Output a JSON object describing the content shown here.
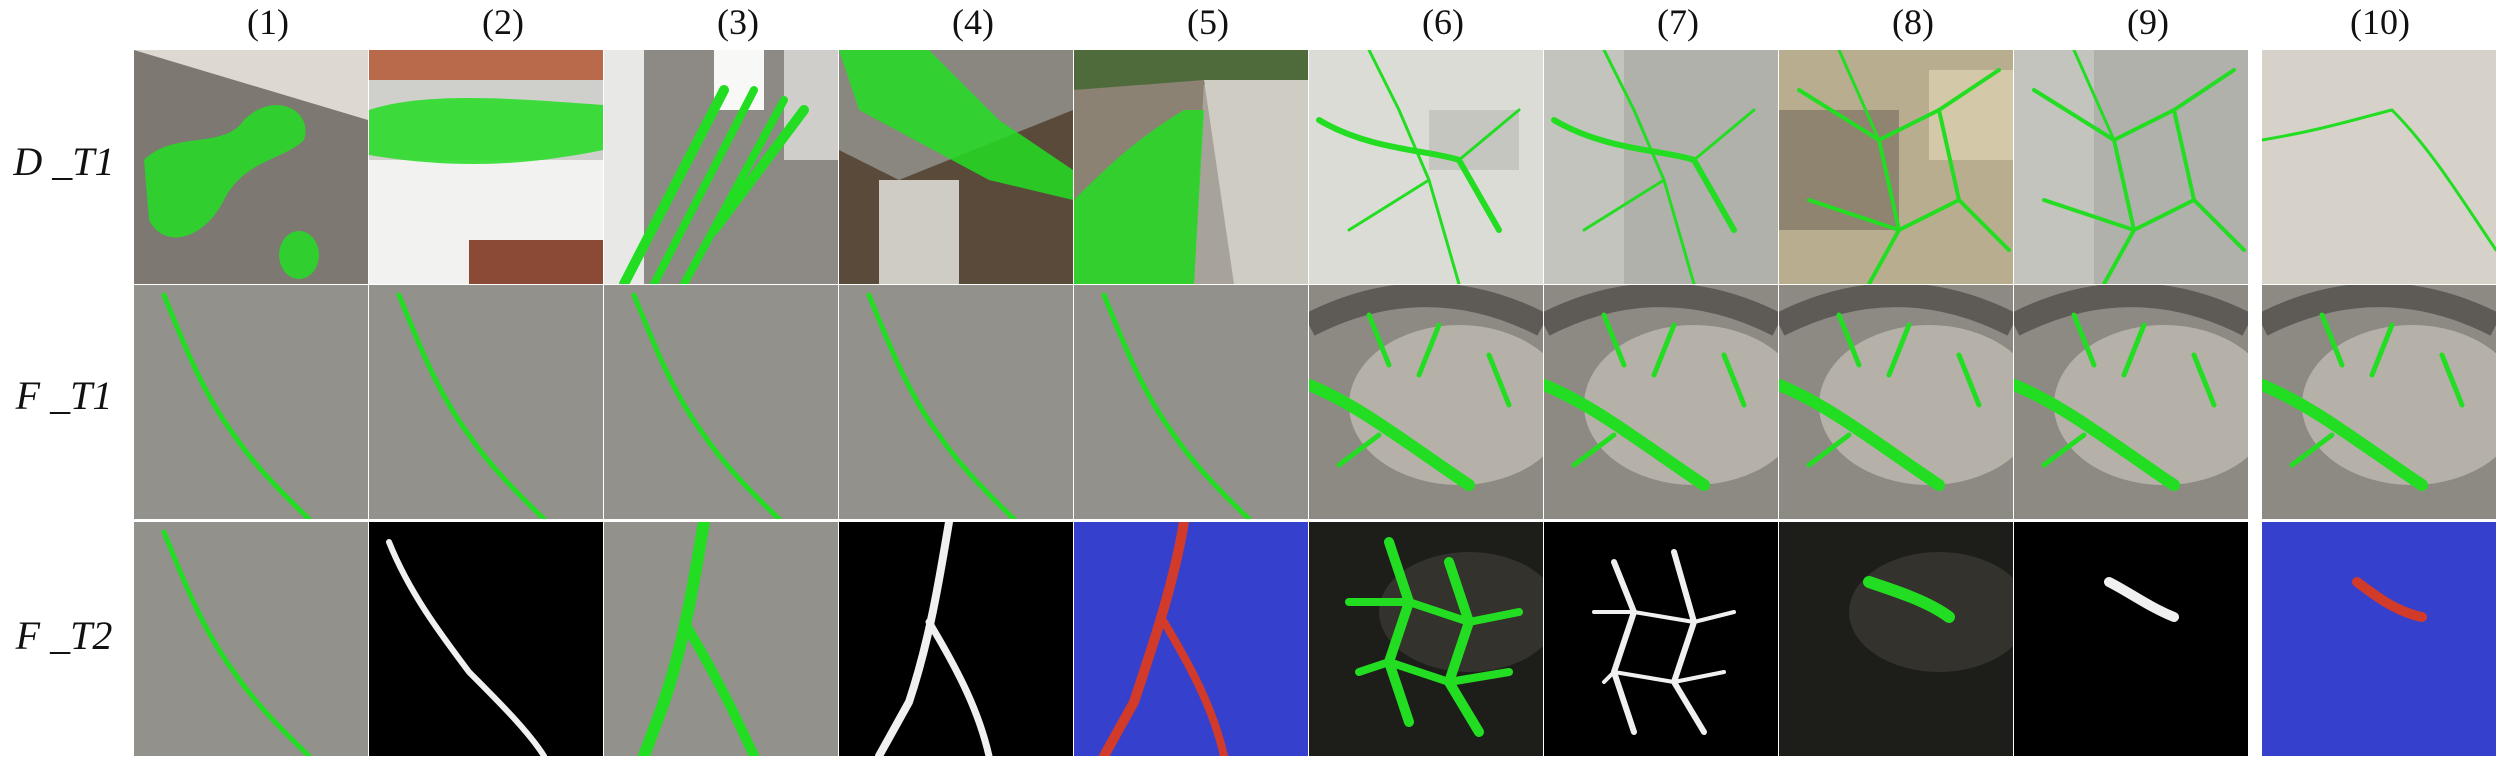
{
  "columns": [
    "(1)",
    "(2)",
    "(3)",
    "(4)",
    "(5)",
    "(6)",
    "(7)",
    "(8)",
    "(9)",
    "(10)"
  ],
  "rows": [
    {
      "label": "D _T1",
      "cells": [
        {
          "bg": "concrete-wall-angled",
          "mask": "green-blobs"
        },
        {
          "bg": "ceiling-underside",
          "mask": "green-band"
        },
        {
          "bg": "corridor-floor",
          "mask": "green-stripes"
        },
        {
          "bg": "column-and-beam",
          "mask": "green-beam"
        },
        {
          "bg": "road-edge",
          "mask": "green-edge"
        },
        {
          "bg": "white-wall",
          "mask": "green-thin-cracks"
        },
        {
          "bg": "grey-wall",
          "mask": "green-thin-cracks"
        },
        {
          "bg": "stained-wall",
          "mask": "green-web"
        },
        {
          "bg": "grey-wall",
          "mask": "green-web"
        },
        {
          "bg": "light-concrete",
          "mask": "green-single-crack"
        }
      ]
    },
    {
      "label": "F _T1",
      "cells": [
        {
          "bg": "concrete-pavement",
          "mask": "green-diagonal-crack"
        },
        {
          "bg": "concrete-pavement",
          "mask": "green-diagonal-crack"
        },
        {
          "bg": "concrete-pavement",
          "mask": "green-diagonal-crack"
        },
        {
          "bg": "concrete-pavement",
          "mask": "green-diagonal-crack"
        },
        {
          "bg": "concrete-pavement",
          "mask": "green-diagonal-crack"
        },
        {
          "bg": "tunnel-lining",
          "mask": "green-arc-cracks"
        },
        {
          "bg": "tunnel-lining",
          "mask": "green-arc-cracks"
        },
        {
          "bg": "tunnel-lining",
          "mask": "green-arc-cracks"
        },
        {
          "bg": "tunnel-lining",
          "mask": "green-arc-cracks"
        },
        {
          "bg": "tunnel-lining",
          "mask": "green-arc-cracks"
        }
      ]
    },
    {
      "label": "F _T2",
      "cells": [
        {
          "bg": "concrete-pavement",
          "mask": "green-diagonal-crack"
        },
        {
          "bg": "black",
          "mask": "white-crack"
        },
        {
          "bg": "concrete-pavement",
          "mask": "green-fork-crack"
        },
        {
          "bg": "black",
          "mask": "white-fork-crack"
        },
        {
          "bg": "blue-heatmap",
          "mask": "red-fork-crack"
        },
        {
          "bg": "dark-tunnel",
          "mask": "green-network"
        },
        {
          "bg": "black",
          "mask": "white-network"
        },
        {
          "bg": "dark-tunnel",
          "mask": "green-short-crack"
        },
        {
          "bg": "black",
          "mask": "white-short-crack"
        },
        {
          "bg": "blue-heatmap",
          "mask": "red-short-crack"
        }
      ]
    }
  ],
  "colors": {
    "mask_green": "#22dd22",
    "mask_white": "#f0f0f0",
    "mask_red": "#d23a2a",
    "heatmap_blue": "#2a36c8"
  }
}
